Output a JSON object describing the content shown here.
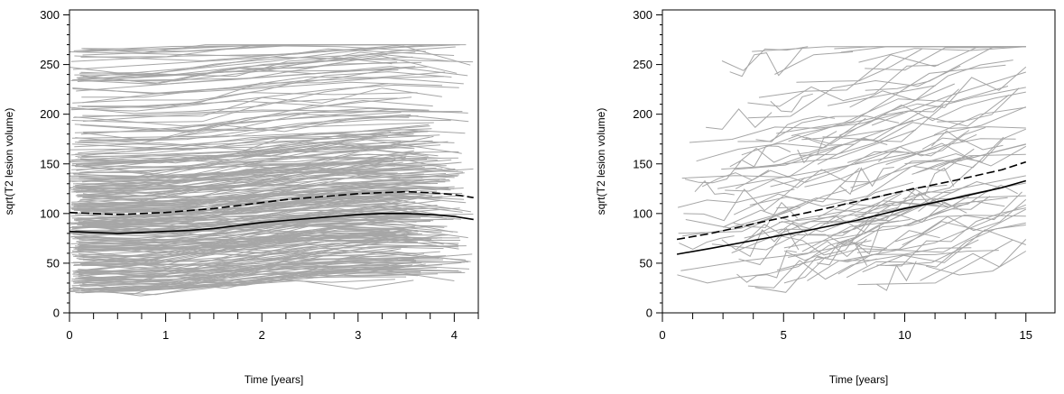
{
  "chart_data": [
    {
      "type": "line",
      "xlabel": "Time [years]",
      "ylabel": "sqrt(T2 lesion volume)",
      "xlim": [
        0,
        4.25
      ],
      "ylim": [
        0,
        305
      ],
      "xticks": [
        0,
        1,
        2,
        3,
        4
      ],
      "yticks": [
        0,
        50,
        100,
        150,
        200,
        250,
        300
      ],
      "grid": false,
      "legend": "none",
      "individual_color": "#a6a6a6",
      "mean_color": "#000000",
      "trajectories": {
        "count": 300,
        "x_range": [
          0,
          4.2
        ],
        "y_range": [
          12,
          270
        ],
        "bulk_y_range": [
          20,
          160
        ]
      },
      "series": [
        {
          "style": "solid",
          "x": [
            0,
            0.25,
            0.5,
            0.75,
            1.0,
            1.25,
            1.5,
            1.75,
            2.0,
            2.25,
            2.5,
            2.75,
            3.0,
            3.25,
            3.5,
            3.75,
            4.0,
            4.2
          ],
          "values": [
            82,
            81,
            80,
            81,
            82,
            83,
            85,
            88,
            91,
            93,
            95,
            97,
            99,
            100,
            100,
            99,
            97,
            94
          ]
        },
        {
          "style": "dashed",
          "x": [
            0,
            0.25,
            0.5,
            0.75,
            1.0,
            1.25,
            1.5,
            1.75,
            2.0,
            2.25,
            2.5,
            2.75,
            3.0,
            3.25,
            3.5,
            3.75,
            4.0,
            4.2
          ],
          "values": [
            101,
            100,
            99,
            100,
            101,
            103,
            105,
            108,
            111,
            114,
            116,
            118,
            120,
            121,
            122,
            121,
            119,
            116
          ]
        }
      ]
    },
    {
      "type": "line",
      "xlabel": "Time [years]",
      "ylabel": "sqrt(T2 lesion volume)",
      "xlim": [
        0,
        16.2
      ],
      "ylim": [
        0,
        305
      ],
      "xticks": [
        0,
        5,
        10,
        15
      ],
      "yticks": [
        0,
        50,
        100,
        150,
        200,
        250,
        300
      ],
      "grid": false,
      "legend": "none",
      "individual_color": "#a6a6a6",
      "mean_color": "#000000",
      "trajectories": {
        "count": 130,
        "x_range": [
          0.5,
          15
        ],
        "y_range": [
          10,
          268
        ],
        "bulk_y_range": [
          25,
          180
        ]
      },
      "series": [
        {
          "style": "solid",
          "x": [
            0.6,
            2,
            4,
            6,
            8,
            10,
            12,
            14,
            15
          ],
          "values": [
            59,
            65,
            74,
            83,
            93,
            105,
            115,
            126,
            133
          ]
        },
        {
          "style": "dashed",
          "x": [
            0.6,
            2,
            4,
            6,
            8,
            10,
            12,
            14,
            15
          ],
          "values": [
            74,
            80,
            91,
            101,
            112,
            123,
            133,
            144,
            152
          ]
        }
      ]
    }
  ]
}
